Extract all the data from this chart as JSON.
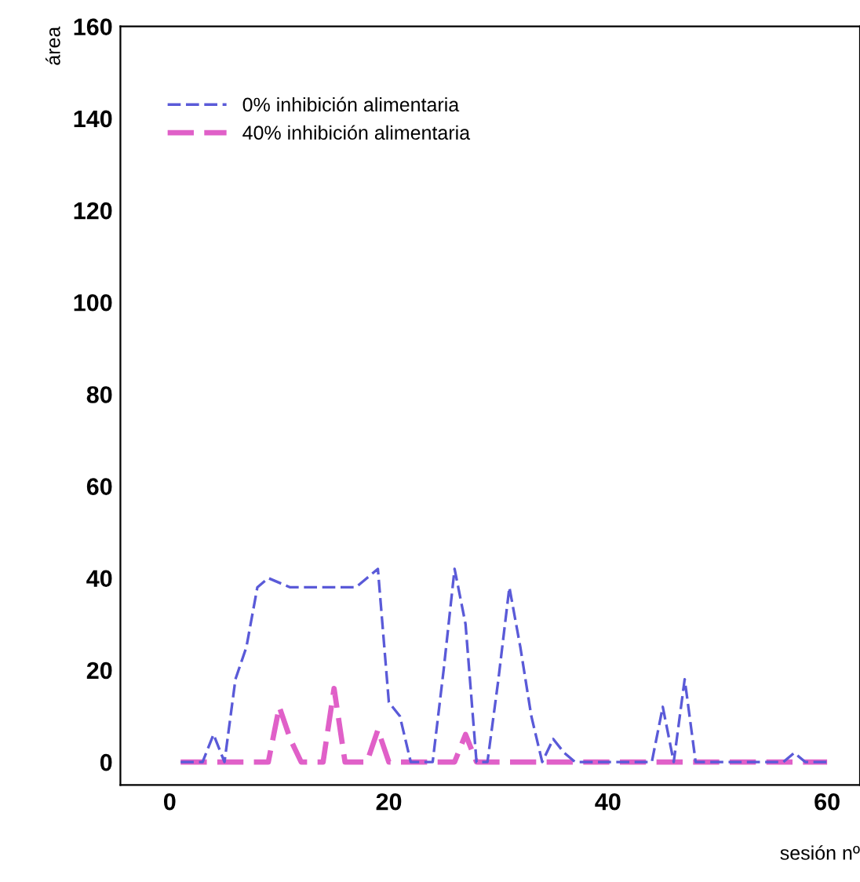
{
  "chart_data": {
    "type": "line",
    "xlabel": "sesión nº",
    "ylabel": "área",
    "xlim": [
      -4.5,
      63
    ],
    "ylim": [
      -5,
      160
    ],
    "xticks": [
      0,
      20,
      40,
      60
    ],
    "yticks": [
      0,
      20,
      40,
      60,
      80,
      100,
      120,
      140,
      160
    ],
    "grid": false,
    "legend": "top left",
    "line_style": "dashed",
    "marker": "none",
    "series": [
      {
        "name": "0% inhibición alimentaria",
        "color": "#5a5ad8",
        "x": [
          1,
          2,
          3,
          4,
          5,
          6,
          7,
          8,
          9,
          10,
          11,
          12,
          13,
          14,
          15,
          16,
          17,
          18,
          19,
          20,
          21,
          22,
          23,
          24,
          25,
          26,
          27,
          28,
          29,
          30,
          31,
          32,
          33,
          34,
          35,
          36,
          37,
          38,
          39,
          40,
          41,
          42,
          43,
          44,
          45,
          46,
          47,
          48,
          49,
          50,
          51,
          52,
          53,
          54,
          55,
          56,
          57,
          58,
          59,
          60
        ],
        "values": [
          0,
          0,
          0,
          6,
          0,
          18,
          25,
          38,
          40,
          39,
          38,
          38,
          38,
          38,
          38,
          38,
          38,
          40,
          42,
          13,
          10,
          0,
          0,
          0,
          20,
          42,
          30,
          0,
          0,
          18,
          38,
          25,
          10,
          0,
          5,
          2,
          0,
          0,
          0,
          0,
          0,
          0,
          0,
          0,
          12,
          0,
          18,
          0,
          0,
          0,
          0,
          0,
          0,
          0,
          0,
          0,
          2,
          0,
          0,
          0
        ]
      },
      {
        "name": "40% inhibición alimentaria",
        "color": "#e060c8",
        "x": [
          1,
          2,
          3,
          4,
          5,
          6,
          7,
          8,
          9,
          10,
          11,
          12,
          13,
          14,
          15,
          16,
          17,
          18,
          19,
          20,
          21,
          22,
          23,
          24,
          25,
          26,
          27,
          28,
          29,
          30,
          31,
          32,
          33,
          34,
          35,
          36,
          37,
          38,
          39,
          40,
          41,
          42,
          43,
          44,
          45,
          46,
          47,
          48,
          49,
          50,
          51,
          52,
          53,
          54,
          55,
          56,
          57,
          58,
          59,
          60
        ],
        "values": [
          0,
          0,
          0,
          0,
          0,
          0,
          0,
          0,
          0,
          12,
          5,
          0,
          0,
          0,
          16,
          0,
          0,
          0,
          7,
          0,
          0,
          0,
          0,
          0,
          0,
          0,
          6,
          0,
          0,
          0,
          0,
          0,
          0,
          0,
          0,
          0,
          0,
          0,
          0,
          0,
          0,
          0,
          0,
          0,
          0,
          0,
          0,
          0,
          0,
          0,
          0,
          0,
          0,
          0,
          0,
          0,
          0,
          0,
          0,
          0
        ]
      }
    ]
  }
}
